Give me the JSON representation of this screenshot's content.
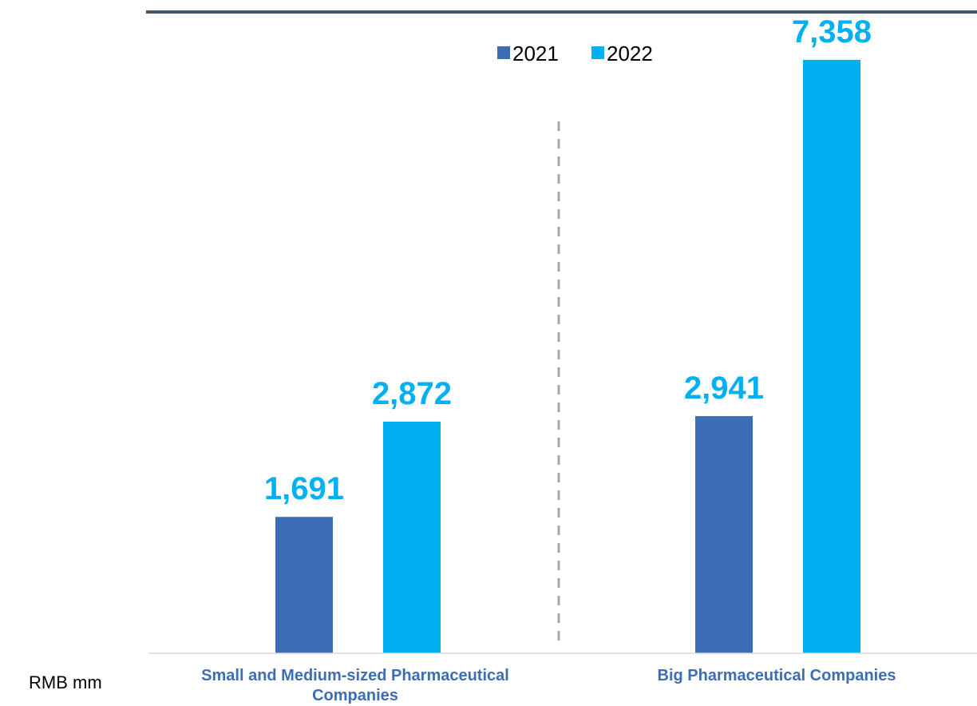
{
  "chart_data": {
    "type": "bar",
    "unit_label": "RMB mm",
    "categories": [
      "Small and Medium-sized Pharmaceutical Companies",
      "Big Pharmaceutical Companies"
    ],
    "series": [
      {
        "name": "2021",
        "values": [
          1691,
          2941
        ],
        "labels": [
          "1,691",
          "2,941"
        ],
        "color": "#3d6db4"
      },
      {
        "name": "2022",
        "values": [
          2872,
          7358
        ],
        "labels": [
          "2,872",
          "7,358"
        ],
        "color": "#00b0f0"
      }
    ],
    "ylim": [
      0,
      8100
    ],
    "legend_position": "top",
    "data_label_color": "#00b0f0",
    "category_label_color": "#3d6db4",
    "top_rule_color": "#44546a",
    "divider_color": "#a6a6a6"
  }
}
